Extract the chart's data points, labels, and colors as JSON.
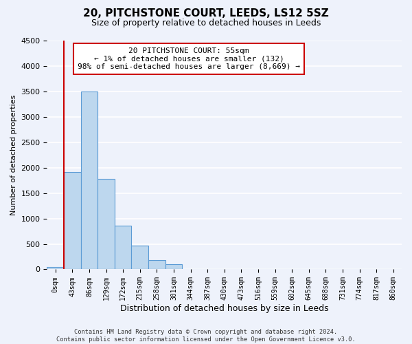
{
  "title": "20, PITCHSTONE COURT, LEEDS, LS12 5SZ",
  "subtitle": "Size of property relative to detached houses in Leeds",
  "xlabel": "Distribution of detached houses by size in Leeds",
  "ylabel": "Number of detached properties",
  "bar_labels": [
    "0sqm",
    "43sqm",
    "86sqm",
    "129sqm",
    "172sqm",
    "215sqm",
    "258sqm",
    "301sqm",
    "344sqm",
    "387sqm",
    "430sqm",
    "473sqm",
    "516sqm",
    "559sqm",
    "602sqm",
    "645sqm",
    "688sqm",
    "731sqm",
    "774sqm",
    "817sqm",
    "860sqm"
  ],
  "bar_values": [
    50,
    1920,
    3500,
    1780,
    860,
    460,
    185,
    95,
    0,
    0,
    0,
    0,
    0,
    0,
    0,
    0,
    0,
    0,
    0,
    0,
    0
  ],
  "bar_color": "#bdd7ee",
  "bar_edge_color": "#5b9bd5",
  "ylim": [
    0,
    4500
  ],
  "yticks": [
    0,
    500,
    1000,
    1500,
    2000,
    2500,
    3000,
    3500,
    4000,
    4500
  ],
  "property_line_x": 0.5,
  "property_line_color": "#cc0000",
  "annotation_text": "20 PITCHSTONE COURT: 55sqm\n← 1% of detached houses are smaller (132)\n98% of semi-detached houses are larger (8,669) →",
  "annotation_box_color": "#ffffff",
  "annotation_box_edge_color": "#cc0000",
  "footer_line1": "Contains HM Land Registry data © Crown copyright and database right 2024.",
  "footer_line2": "Contains public sector information licensed under the Open Government Licence v3.0.",
  "background_color": "#eef2fb",
  "plot_background_color": "#eef2fb",
  "grid_color": "#ffffff",
  "figsize": [
    6.0,
    5.0
  ],
  "dpi": 100
}
